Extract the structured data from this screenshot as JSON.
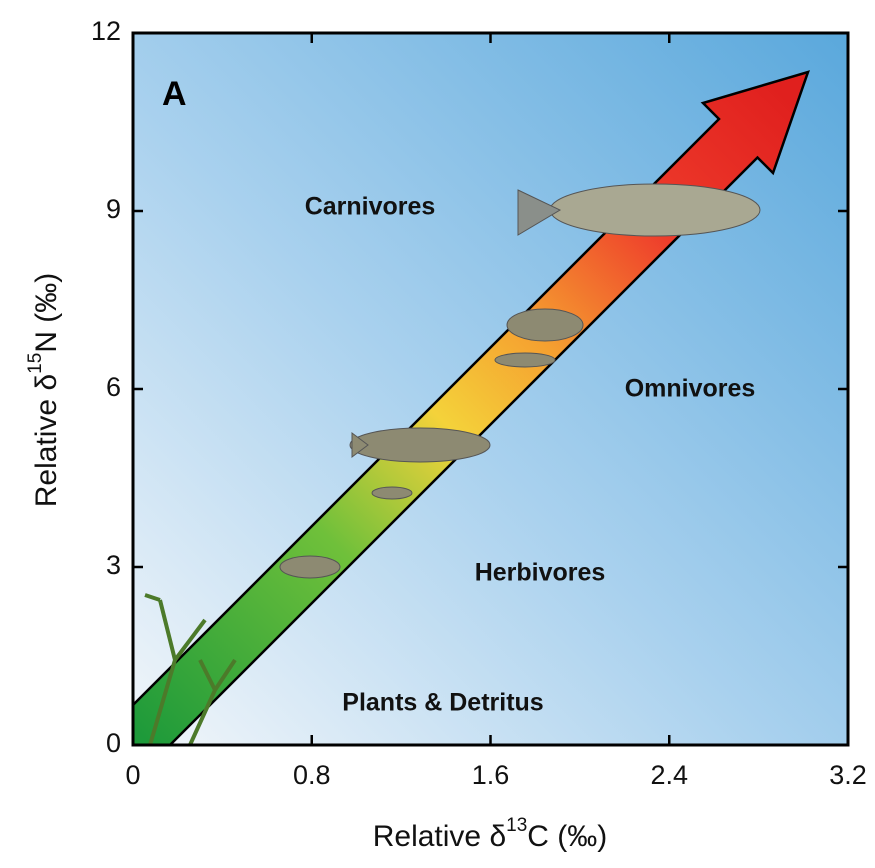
{
  "chart_data": {
    "type": "diagram",
    "panel_label": "A",
    "xlabel": {
      "text": "Relative δ",
      "sup": "13",
      "rest": "C (‰)"
    },
    "ylabel": {
      "text": "Relative δ",
      "sup": "15",
      "rest": "N (‰)"
    },
    "xlim": [
      0,
      3.2
    ],
    "xticks": [
      0,
      0.8,
      1.6,
      2.4,
      3.2
    ],
    "ylim": [
      0,
      12
    ],
    "yticks": [
      0,
      3,
      6,
      9,
      12
    ],
    "annotations": [
      "Carnivores",
      "Omnivores",
      "Herbivores",
      "Plants & Detritus"
    ]
  }
}
